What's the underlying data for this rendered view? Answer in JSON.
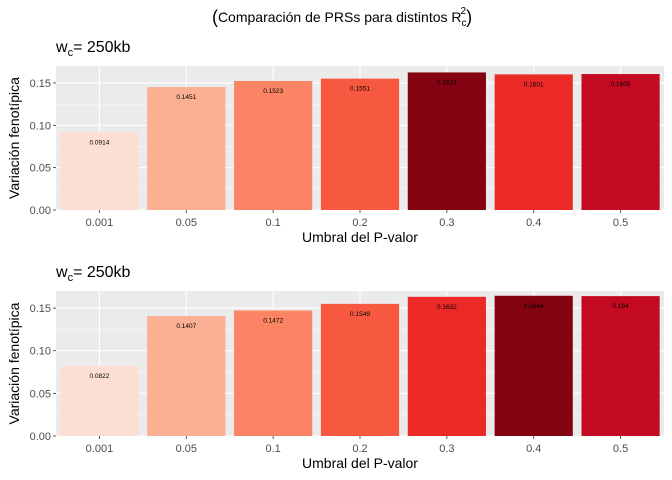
{
  "figure": {
    "title_prefix": "Comparación de PRSs para distintos R",
    "title_sub": "c",
    "title_sup": "2"
  },
  "chart_data": [
    {
      "type": "bar",
      "title_main": "w",
      "title_sub": "c",
      "title_rest": "= 250kb",
      "xlabel": "Umbral del P-valor",
      "ylabel": "Variación fenotípica",
      "categories": [
        "0.001",
        "0.05",
        "0.1",
        "0.2",
        "0.3",
        "0.4",
        "0.5"
      ],
      "values": [
        0.0914,
        0.1451,
        0.1523,
        0.1551,
        0.1624,
        0.1601,
        0.1605
      ],
      "value_labels": [
        "0.0914",
        "0.1451",
        "0.1523",
        "0.1551",
        "0.1624",
        "0.1601",
        "0.1605"
      ],
      "colors": [
        "#FCDED2",
        "#FBAF93",
        "#FB8464",
        "#F75840",
        "#830410",
        "#EB2A28",
        "#C30A20"
      ],
      "ylim": [
        0,
        0.17
      ],
      "yticks": [
        0.0,
        0.05,
        0.1,
        0.15
      ],
      "ytick_labels": [
        "0.00",
        "0.05",
        "0.10",
        "0.15"
      ],
      "grid": true,
      "legend": "none"
    },
    {
      "type": "bar",
      "title_main": "w",
      "title_sub": "c",
      "title_rest": "= 250kb",
      "xlabel": "Umbral del P-valor",
      "ylabel": "Variación fenotípica",
      "categories": [
        "0.001",
        "0.05",
        "0.1",
        "0.2",
        "0.3",
        "0.4",
        "0.5"
      ],
      "values": [
        0.0822,
        0.1407,
        0.1472,
        0.1549,
        0.1632,
        0.1644,
        0.164
      ],
      "value_labels": [
        "0.0822",
        "0.1407",
        "0.1472",
        "0.1549",
        "0.1632",
        "0.1644",
        "0.164"
      ],
      "colors": [
        "#FCDED2",
        "#FBAF93",
        "#FB8464",
        "#F75840",
        "#EB2A28",
        "#830410",
        "#C30A20"
      ],
      "ylim": [
        0,
        0.17
      ],
      "yticks": [
        0.0,
        0.05,
        0.1,
        0.15
      ],
      "ytick_labels": [
        "0.00",
        "0.05",
        "0.10",
        "0.15"
      ],
      "grid": true,
      "legend": "none"
    }
  ],
  "colors": {
    "panel_background": "#EBEBEB",
    "gridline": "#FFFFFF",
    "text": "#000000",
    "tick_text": "#4D4D4D"
  }
}
